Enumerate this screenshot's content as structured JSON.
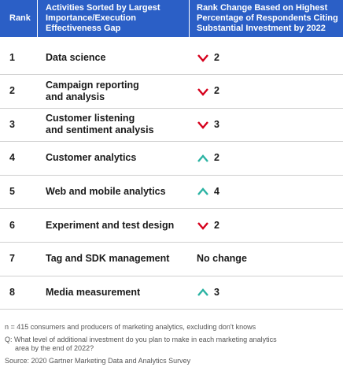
{
  "table": {
    "header": [
      [
        "Rank"
      ],
      [
        "Activities Sorted by Largest",
        "Importance/Execution",
        "Effectiveness Gap"
      ],
      [
        "Rank Change Based on Highest",
        "Percentage of Respondents Citing",
        "Substantial Investment by 2022"
      ]
    ],
    "rows": [
      [
        "1",
        [
          "Data science"
        ],
        "2"
      ],
      [
        "2",
        [
          "Campaign reporting",
          "and analysis"
        ],
        "2"
      ],
      [
        "3",
        [
          "Customer listening",
          "and sentiment analysis"
        ],
        "3"
      ],
      [
        "4",
        [
          "Customer analytics"
        ],
        "2"
      ],
      [
        "5",
        [
          "Web and mobile analytics"
        ],
        "4"
      ],
      [
        "6",
        [
          "Experiment and test design"
        ],
        "2"
      ],
      [
        "7",
        [
          "Tag and SDK management"
        ],
        "No change"
      ],
      [
        "8",
        [
          "Media measurement"
        ],
        "3"
      ]
    ]
  },
  "notes": {
    "n": "n = 415 consumers and producers of marketing analytics, excluding don't knows",
    "question": [
      "Q: What level of additional investment do you plan to make in each marketing analytics",
      "area by the end of 2022?"
    ],
    "source": "Source: 2020 Gartner Marketing Data and Analytics Survey"
  }
}
